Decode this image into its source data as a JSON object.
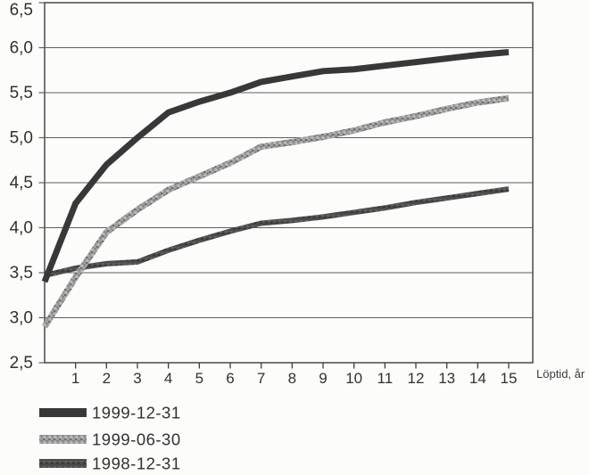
{
  "chart_data": {
    "type": "line",
    "title": "",
    "xlabel": "Löptid, år",
    "ylabel": "",
    "xlim": [
      0,
      15.8
    ],
    "ylim": [
      2.5,
      6.5
    ],
    "grid": "horizontal",
    "legend_position": "below-left",
    "x": [
      0,
      1,
      2,
      3,
      4,
      5,
      6,
      7,
      8,
      9,
      10,
      11,
      12,
      13,
      14,
      15
    ],
    "xtick_labels": [
      "1",
      "2",
      "3",
      "4",
      "5",
      "6",
      "7",
      "8",
      "9",
      "10",
      "11",
      "12",
      "13",
      "14",
      "15"
    ],
    "yticks": [
      {
        "value": 6.5,
        "label": "6,5"
      },
      {
        "value": 6.0,
        "label": "6,0"
      },
      {
        "value": 5.5,
        "label": "5,5"
      },
      {
        "value": 5.0,
        "label": "5,0"
      },
      {
        "value": 4.5,
        "label": "4,5"
      },
      {
        "value": 4.0,
        "label": "4,0"
      },
      {
        "value": 3.5,
        "label": "3,5"
      },
      {
        "value": 3.0,
        "label": "3,0"
      },
      {
        "value": 2.5,
        "label": "2,5"
      }
    ],
    "series": [
      {
        "name": "1999-12-31",
        "color": "#383838",
        "style": "solid",
        "values": [
          3.4,
          4.27,
          4.7,
          5.0,
          5.28,
          5.4,
          5.5,
          5.62,
          5.68,
          5.74,
          5.76,
          5.8,
          5.84,
          5.88,
          5.92,
          5.95
        ]
      },
      {
        "name": "1999-06-30",
        "color": "#9b9b9b",
        "style": "speckled-light",
        "values": [
          2.9,
          3.45,
          3.95,
          4.2,
          4.42,
          4.57,
          4.72,
          4.9,
          4.95,
          5.01,
          5.08,
          5.17,
          5.24,
          5.32,
          5.39,
          5.44
        ]
      },
      {
        "name": "1998-12-31",
        "color": "#4e4e4e",
        "style": "speckled-dark",
        "values": [
          3.47,
          3.55,
          3.6,
          3.62,
          3.75,
          3.86,
          3.96,
          4.05,
          4.08,
          4.12,
          4.17,
          4.22,
          4.28,
          4.33,
          4.38,
          4.43
        ]
      }
    ]
  },
  "colors": {
    "background": "#fcfcfb",
    "plot_border": "#3c3c3c",
    "gridline": "#5e5e5e",
    "text": "#313131"
  }
}
